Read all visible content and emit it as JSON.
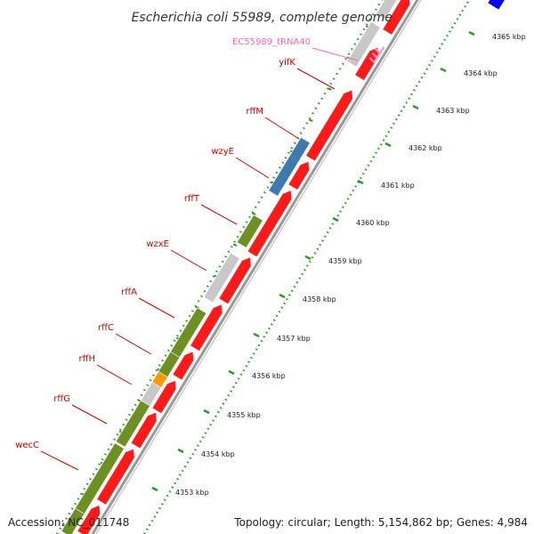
{
  "title": "Escherichia coli 55989, complete genome",
  "footer": {
    "accession": "Accession: NC_011748",
    "topology": "Topology: circular; Length: 5,154,862 bp; Genes: 4,984"
  },
  "colors": {
    "forward_cds": "#ff1a1a",
    "reverse_cds_green": "#6e8f22",
    "reverse_cds_gray": "#c8c8c8",
    "reverse_cds_blue": "#3d7ab0",
    "reverse_cds_orange": "#ff9900",
    "trna": "#ff99cc",
    "label_red": "#cc0000",
    "label_pink": "#ff66aa",
    "dotted_ring": "#2a9a2a",
    "backbone": "#888888",
    "marker": "#0000ee"
  },
  "kbp_ticks": [
    "4353 kbp",
    "4354 kbp",
    "4355 kbp",
    "4356 kbp",
    "4357 kbp",
    "4358 kbp",
    "4359 kbp",
    "4360 kbp",
    "4361 kbp",
    "4362 kbp",
    "4363 kbp",
    "4364 kbp",
    "4365 kbp"
  ],
  "gene_labels": [
    {
      "name": "EC55989_tRNA40",
      "color": "label_pink"
    },
    {
      "name": "yifK",
      "color": "label_red"
    },
    {
      "name": "rffM",
      "color": "label_red"
    },
    {
      "name": "wzyE",
      "color": "label_red"
    },
    {
      "name": "rffT",
      "color": "label_red"
    },
    {
      "name": "wzxE",
      "color": "label_red"
    },
    {
      "name": "rffA",
      "color": "label_red"
    },
    {
      "name": "rffC",
      "color": "label_red"
    },
    {
      "name": "rffH",
      "color": "label_red"
    },
    {
      "name": "rffG",
      "color": "label_red"
    },
    {
      "name": "wecC",
      "color": "label_red"
    }
  ],
  "reverse_strand_features": [
    "gray",
    "blue",
    "green",
    "gray",
    "green",
    "green",
    "orange",
    "gray",
    "green",
    "green",
    "green"
  ],
  "forward_strand_feature_count": 12,
  "trna_feature_count": 1
}
